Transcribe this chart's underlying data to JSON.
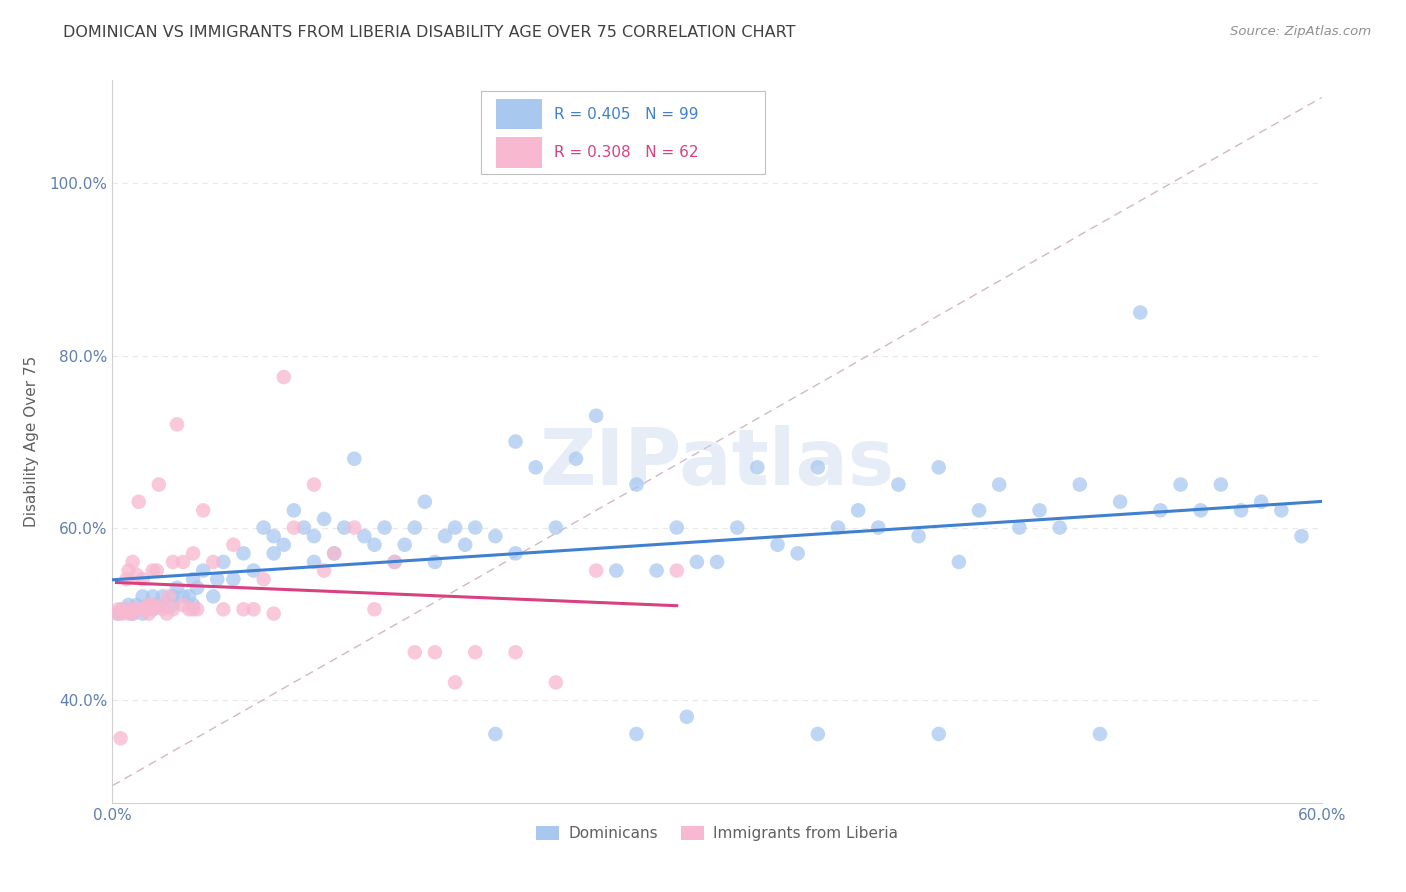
{
  "title": "DOMINICAN VS IMMIGRANTS FROM LIBERIA DISABILITY AGE OVER 75 CORRELATION CHART",
  "source": "Source: ZipAtlas.com",
  "ylabel": "Disability Age Over 75",
  "xlim": [
    0.0,
    0.6
  ],
  "ylim": [
    0.28,
    1.12
  ],
  "yticks": [
    0.4,
    0.6,
    0.8,
    1.0
  ],
  "ytick_labels": [
    "40.0%",
    "60.0%",
    "80.0%",
    "100.0%"
  ],
  "xtick_positions": [
    0.0,
    0.1,
    0.2,
    0.3,
    0.4,
    0.5,
    0.6
  ],
  "xtick_labels": [
    "0.0%",
    "",
    "",
    "",
    "",
    "",
    "60.0%"
  ],
  "legend_labels_bottom": [
    "Dominicans",
    "Immigrants from Liberia"
  ],
  "blue_color": "#a8c8f0",
  "pink_color": "#f8b8d0",
  "diagonal_color": "#d0b8c8",
  "blue_line_color": "#4080d0",
  "pink_line_color": "#d84080",
  "watermark": "ZIPatlas",
  "blue_R": "0.405",
  "blue_N": "99",
  "pink_R": "0.308",
  "pink_N": "62",
  "blue_scatter_x": [
    0.003,
    0.005,
    0.008,
    0.01,
    0.012,
    0.015,
    0.015,
    0.018,
    0.02,
    0.02,
    0.022,
    0.025,
    0.025,
    0.03,
    0.03,
    0.032,
    0.035,
    0.038,
    0.04,
    0.04,
    0.042,
    0.045,
    0.05,
    0.052,
    0.055,
    0.06,
    0.065,
    0.07,
    0.075,
    0.08,
    0.08,
    0.085,
    0.09,
    0.095,
    0.1,
    0.1,
    0.105,
    0.11,
    0.115,
    0.12,
    0.125,
    0.13,
    0.135,
    0.14,
    0.145,
    0.15,
    0.155,
    0.16,
    0.165,
    0.17,
    0.175,
    0.18,
    0.19,
    0.2,
    0.2,
    0.21,
    0.22,
    0.23,
    0.24,
    0.25,
    0.26,
    0.27,
    0.28,
    0.29,
    0.3,
    0.31,
    0.32,
    0.33,
    0.34,
    0.35,
    0.36,
    0.37,
    0.38,
    0.39,
    0.4,
    0.41,
    0.42,
    0.43,
    0.44,
    0.45,
    0.46,
    0.47,
    0.48,
    0.5,
    0.51,
    0.52,
    0.53,
    0.54,
    0.55,
    0.56,
    0.57,
    0.58,
    0.59,
    0.285,
    0.19,
    0.26,
    0.35,
    0.41,
    0.49
  ],
  "blue_scatter_y": [
    0.5,
    0.505,
    0.51,
    0.5,
    0.51,
    0.5,
    0.52,
    0.51,
    0.505,
    0.52,
    0.51,
    0.51,
    0.52,
    0.51,
    0.52,
    0.53,
    0.52,
    0.52,
    0.51,
    0.54,
    0.53,
    0.55,
    0.52,
    0.54,
    0.56,
    0.54,
    0.57,
    0.55,
    0.6,
    0.57,
    0.59,
    0.58,
    0.62,
    0.6,
    0.56,
    0.59,
    0.61,
    0.57,
    0.6,
    0.68,
    0.59,
    0.58,
    0.6,
    0.56,
    0.58,
    0.6,
    0.63,
    0.56,
    0.59,
    0.6,
    0.58,
    0.6,
    0.59,
    0.57,
    0.7,
    0.67,
    0.6,
    0.68,
    0.73,
    0.55,
    0.65,
    0.55,
    0.6,
    0.56,
    0.56,
    0.6,
    0.67,
    0.58,
    0.57,
    0.67,
    0.6,
    0.62,
    0.6,
    0.65,
    0.59,
    0.67,
    0.56,
    0.62,
    0.65,
    0.6,
    0.62,
    0.6,
    0.65,
    0.63,
    0.85,
    0.62,
    0.65,
    0.62,
    0.65,
    0.62,
    0.63,
    0.62,
    0.59,
    0.38,
    0.36,
    0.36,
    0.36,
    0.36,
    0.36
  ],
  "pink_scatter_x": [
    0.002,
    0.003,
    0.004,
    0.005,
    0.006,
    0.007,
    0.008,
    0.008,
    0.009,
    0.01,
    0.01,
    0.012,
    0.012,
    0.013,
    0.015,
    0.015,
    0.016,
    0.017,
    0.018,
    0.018,
    0.02,
    0.02,
    0.02,
    0.022,
    0.023,
    0.025,
    0.025,
    0.027,
    0.028,
    0.03,
    0.03,
    0.032,
    0.035,
    0.035,
    0.038,
    0.04,
    0.04,
    0.042,
    0.045,
    0.05,
    0.055,
    0.06,
    0.065,
    0.07,
    0.075,
    0.08,
    0.085,
    0.09,
    0.1,
    0.105,
    0.11,
    0.12,
    0.13,
    0.14,
    0.15,
    0.16,
    0.17,
    0.18,
    0.2,
    0.22,
    0.24,
    0.28
  ],
  "pink_scatter_y": [
    0.5,
    0.505,
    0.355,
    0.5,
    0.505,
    0.54,
    0.5,
    0.55,
    0.505,
    0.5,
    0.56,
    0.505,
    0.545,
    0.63,
    0.505,
    0.54,
    0.505,
    0.505,
    0.5,
    0.51,
    0.505,
    0.51,
    0.55,
    0.55,
    0.65,
    0.505,
    0.51,
    0.5,
    0.52,
    0.505,
    0.56,
    0.72,
    0.51,
    0.56,
    0.505,
    0.505,
    0.57,
    0.505,
    0.62,
    0.56,
    0.505,
    0.58,
    0.505,
    0.505,
    0.54,
    0.5,
    0.775,
    0.6,
    0.65,
    0.55,
    0.57,
    0.6,
    0.505,
    0.56,
    0.455,
    0.455,
    0.42,
    0.455,
    0.455,
    0.42,
    0.55,
    0.55
  ],
  "background_color": "#ffffff",
  "grid_color": "#e8e8e8",
  "title_color": "#404040",
  "axis_label_color": "#606060",
  "tick_color": "#6080b0",
  "watermark_color": "#c8d8ec",
  "watermark_alpha": 0.45
}
